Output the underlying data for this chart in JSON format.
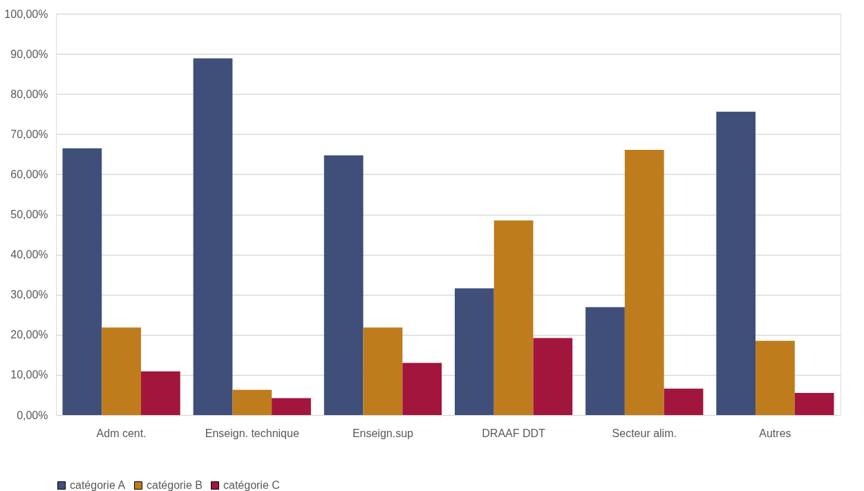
{
  "chart_data": {
    "type": "bar",
    "categories": [
      "Adm cent.",
      "Enseign. technique",
      "Enseign.sup",
      "DRAAF DDT",
      "Secteur alim.",
      "Autres"
    ],
    "series": [
      {
        "name": "catégorie A",
        "color": "#3f4f79",
        "values": [
          66.5,
          88.9,
          64.7,
          31.6,
          26.9,
          75.6
        ]
      },
      {
        "name": "catégorie B",
        "color": "#be7c1c",
        "values": [
          21.8,
          6.3,
          21.8,
          48.5,
          66.1,
          18.5
        ]
      },
      {
        "name": "catégorie C",
        "color": "#a2153c",
        "values": [
          10.9,
          4.2,
          13.0,
          19.2,
          6.6,
          5.5
        ]
      }
    ],
    "ylim": [
      0,
      100
    ],
    "yticks": [
      {
        "value": 0,
        "label": "0,00%"
      },
      {
        "value": 10,
        "label": "10,00%"
      },
      {
        "value": 20,
        "label": "20,00%"
      },
      {
        "value": 30,
        "label": "30,00%"
      },
      {
        "value": 40,
        "label": "40,00%"
      },
      {
        "value": 50,
        "label": "50,00%"
      },
      {
        "value": 60,
        "label": "60,00%"
      },
      {
        "value": 70,
        "label": "70,00%"
      },
      {
        "value": 80,
        "label": "80,00%"
      },
      {
        "value": 90,
        "label": "90,00%"
      },
      {
        "value": 100,
        "label": "100,00%"
      }
    ],
    "grid": "y",
    "legend": "bottom"
  }
}
